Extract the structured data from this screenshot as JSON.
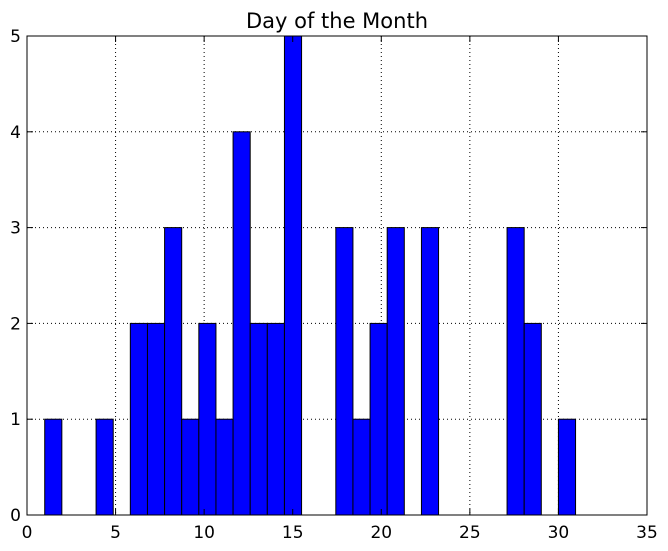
{
  "chart_data": {
    "type": "bar",
    "title": "Day of the Month",
    "xlabel": "",
    "ylabel": "",
    "xlim": [
      0,
      35
    ],
    "ylim": [
      0,
      5
    ],
    "xticks": [
      0,
      5,
      10,
      15,
      20,
      25,
      30,
      35
    ],
    "yticks": [
      0,
      1,
      2,
      3,
      4,
      5
    ],
    "grid": true,
    "bar_color": "#0000ff",
    "edge_color": "#000000",
    "bins": [
      {
        "start": 1.0,
        "end": 1.967,
        "count": 1
      },
      {
        "start": 1.967,
        "end": 2.933,
        "count": 0
      },
      {
        "start": 2.933,
        "end": 3.9,
        "count": 0
      },
      {
        "start": 3.9,
        "end": 4.867,
        "count": 1
      },
      {
        "start": 4.867,
        "end": 5.833,
        "count": 0
      },
      {
        "start": 5.833,
        "end": 6.8,
        "count": 2
      },
      {
        "start": 6.8,
        "end": 7.767,
        "count": 2
      },
      {
        "start": 7.767,
        "end": 8.733,
        "count": 3
      },
      {
        "start": 8.733,
        "end": 9.7,
        "count": 1
      },
      {
        "start": 9.7,
        "end": 10.667,
        "count": 2
      },
      {
        "start": 10.667,
        "end": 11.633,
        "count": 1
      },
      {
        "start": 11.633,
        "end": 12.6,
        "count": 4
      },
      {
        "start": 12.6,
        "end": 13.567,
        "count": 2
      },
      {
        "start": 13.567,
        "end": 14.533,
        "count": 2
      },
      {
        "start": 14.533,
        "end": 15.5,
        "count": 5
      },
      {
        "start": 15.5,
        "end": 16.467,
        "count": 0
      },
      {
        "start": 16.467,
        "end": 17.433,
        "count": 0
      },
      {
        "start": 17.433,
        "end": 18.4,
        "count": 3
      },
      {
        "start": 18.4,
        "end": 19.367,
        "count": 1
      },
      {
        "start": 19.367,
        "end": 20.333,
        "count": 2
      },
      {
        "start": 20.333,
        "end": 21.3,
        "count": 3
      },
      {
        "start": 21.3,
        "end": 22.267,
        "count": 0
      },
      {
        "start": 22.267,
        "end": 23.233,
        "count": 3
      },
      {
        "start": 23.233,
        "end": 24.2,
        "count": 0
      },
      {
        "start": 24.2,
        "end": 25.167,
        "count": 0
      },
      {
        "start": 25.167,
        "end": 26.133,
        "count": 0
      },
      {
        "start": 26.133,
        "end": 27.1,
        "count": 0
      },
      {
        "start": 27.1,
        "end": 28.067,
        "count": 3
      },
      {
        "start": 28.067,
        "end": 29.033,
        "count": 2
      },
      {
        "start": 29.033,
        "end": 30.0,
        "count": 0
      },
      {
        "start": 30.0,
        "end": 30.967,
        "count": 1
      }
    ]
  }
}
